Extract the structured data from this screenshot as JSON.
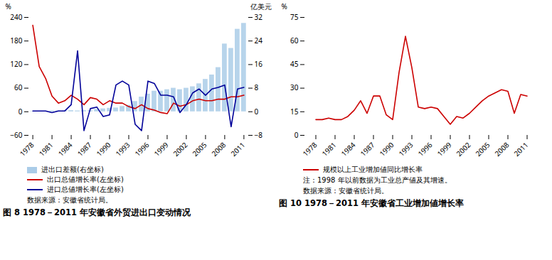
{
  "chart_data": [
    {
      "type": "bar",
      "title": "图 8  1978－2011 年安徽省外贸进出口变动情况",
      "ylabel": "%",
      "y2label": "亿美元",
      "annotations": [
        "数据来源：安徽省统计局。"
      ],
      "categories": [
        "1978",
        null,
        null,
        "1981",
        null,
        null,
        "1984",
        null,
        null,
        "1987",
        null,
        null,
        "1990",
        null,
        null,
        "1993",
        null,
        null,
        "1996",
        null,
        null,
        "1999",
        null,
        null,
        "2002",
        null,
        null,
        "2005",
        null,
        null,
        "2008",
        null,
        null,
        "2011"
      ],
      "series": [
        {
          "name": "进出口差额(右坐标)",
          "type": "bar",
          "axis": "y2",
          "color": "#aacce8",
          "values": [
            0.1,
            0.1,
            0.2,
            0.3,
            0.3,
            0.3,
            0.4,
            0.3,
            0.4,
            0.4,
            0.8,
            1.0,
            1.2,
            1.3,
            1.8,
            2.2,
            3.5,
            5.0,
            6.0,
            7.0,
            7.0,
            7.5,
            8.0,
            7.5,
            8.0,
            8.5,
            9.5,
            11.0,
            12.5,
            15.0,
            23.0,
            21.5,
            28.0,
            30.0
          ]
        },
        {
          "name": "出口总値增长率(左坐标)",
          "type": "line",
          "color": "#cc0000",
          "values": [
            220,
            115,
            85,
            40,
            22,
            28,
            42,
            32,
            18,
            36,
            32,
            18,
            28,
            22,
            22,
            13,
            8,
            18,
            8,
            4,
            -2,
            -5,
            22,
            14,
            18,
            28,
            32,
            28,
            28,
            32,
            32,
            38,
            38,
            42
          ]
        },
        {
          "name": "进口总値增长率(左坐标)",
          "type": "line",
          "color": "#000099",
          "values": [
            2,
            2,
            2,
            -2,
            2,
            2,
            18,
            155,
            -48,
            8,
            12,
            -12,
            -8,
            68,
            78,
            68,
            -32,
            -48,
            78,
            72,
            42,
            42,
            38,
            -2,
            18,
            48,
            58,
            42,
            58,
            62,
            68,
            -38,
            58,
            62
          ]
        }
      ],
      "ylim": [
        -60,
        240
      ],
      "yticks": [
        -60,
        0,
        60,
        120,
        180,
        240
      ],
      "y2lim": [
        -8,
        32
      ],
      "y2ticks": [
        -8,
        0,
        8,
        16,
        24,
        32
      ],
      "grid": false,
      "legend": "bottom"
    },
    {
      "type": "line",
      "title": "图 10  1978－2011 年安徽省工业增加値增长率",
      "ylabel": "%",
      "annotations": [
        "注：1998 年以前数据为工业总产値及其增速。",
        "数据来源：安徽省统计局。"
      ],
      "categories": [
        "1978",
        null,
        null,
        "1981",
        null,
        null,
        "1984",
        null,
        null,
        "1987",
        null,
        null,
        "1990",
        null,
        null,
        "1993",
        null,
        null,
        "1996",
        null,
        null,
        "1999",
        null,
        null,
        "2002",
        null,
        null,
        "2005",
        null,
        null,
        "2008",
        null,
        null,
        "2011"
      ],
      "series": [
        {
          "name": "规模以上工业增加値同比增长率",
          "color": "#cc0000",
          "values": [
            10,
            10,
            11,
            10,
            10,
            12,
            16,
            22,
            14,
            25,
            25,
            13,
            10,
            40,
            63,
            43,
            18,
            17,
            18,
            17,
            12,
            7,
            12,
            11,
            14,
            18,
            22,
            25,
            27,
            29,
            28,
            14,
            26,
            25
          ]
        }
      ],
      "ylim": [
        0,
        75
      ],
      "yticks": [
        0,
        15,
        30,
        45,
        60,
        75
      ],
      "grid": false,
      "legend": "bottom"
    }
  ]
}
